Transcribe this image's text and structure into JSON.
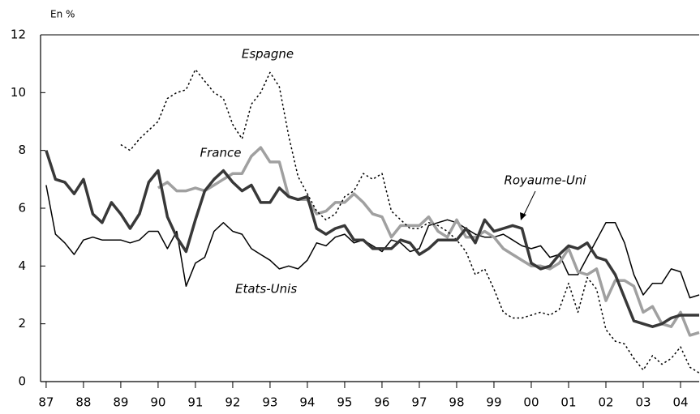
{
  "chart_data": {
    "type": "line",
    "y_axis_label": "En %",
    "x": [
      1987,
      1987.25,
      1987.5,
      1987.75,
      1988,
      1988.25,
      1988.5,
      1988.75,
      1989,
      1989.25,
      1989.5,
      1989.75,
      1990,
      1990.25,
      1990.5,
      1990.75,
      1991,
      1991.25,
      1991.5,
      1991.75,
      1992,
      1992.25,
      1992.5,
      1992.75,
      1993,
      1993.25,
      1993.5,
      1993.75,
      1994,
      1994.25,
      1994.5,
      1994.75,
      1995,
      1995.25,
      1995.5,
      1995.75,
      1996,
      1996.25,
      1996.5,
      1996.75,
      1997,
      1997.25,
      1997.5,
      1997.75,
      1998,
      1998.25,
      1998.5,
      1998.75,
      1999,
      1999.25,
      1999.5,
      1999.75,
      2000,
      2000.25,
      2000.5,
      2000.75,
      2001,
      2001.25,
      2001.5,
      2001.75,
      2002,
      2002.25,
      2002.5,
      2002.75,
      2003,
      2003.25,
      2003.5,
      2003.75,
      2004,
      2004.25,
      2004.5
    ],
    "series": [
      {
        "name": "Etats-Unis",
        "color": "#000000",
        "values": [
          6.8,
          5.1,
          4.8,
          4.4,
          4.9,
          5.0,
          4.9,
          4.9,
          4.9,
          4.8,
          4.9,
          5.2,
          5.2,
          4.6,
          5.2,
          3.3,
          4.1,
          4.3,
          5.2,
          5.5,
          5.2,
          5.1,
          4.6,
          4.4,
          4.2,
          3.9,
          4.0,
          3.9,
          4.2,
          4.8,
          4.7,
          5.0,
          5.1,
          4.8,
          4.9,
          4.7,
          4.5,
          4.9,
          4.8,
          4.5,
          4.6,
          5.4,
          5.5,
          5.6,
          5.5,
          5.3,
          5.1,
          5.0,
          5.0,
          5.1,
          4.9,
          4.7,
          4.6,
          4.7,
          4.3,
          4.4,
          3.7,
          3.7,
          4.3,
          4.9,
          5.5,
          5.5,
          4.8,
          3.7,
          3.0,
          3.4,
          3.4,
          3.9,
          3.8,
          2.9,
          3.0
        ]
      },
      {
        "name": "Royaume-Uni",
        "color": "#383838",
        "values": [
          8.0,
          7.0,
          6.9,
          6.5,
          7.0,
          5.8,
          5.5,
          6.2,
          5.8,
          5.3,
          5.8,
          6.9,
          7.3,
          5.7,
          5.0,
          4.5,
          5.6,
          6.6,
          7.0,
          7.3,
          6.9,
          6.6,
          6.8,
          6.2,
          6.2,
          6.7,
          6.4,
          6.3,
          6.4,
          5.3,
          5.1,
          5.3,
          5.4,
          4.9,
          4.9,
          4.6,
          4.6,
          4.6,
          4.9,
          4.8,
          4.4,
          4.6,
          4.9,
          4.9,
          4.9,
          5.3,
          4.8,
          5.6,
          5.2,
          5.3,
          5.4,
          5.3,
          4.1,
          3.9,
          4.0,
          4.4,
          4.7,
          4.6,
          4.8,
          4.3,
          4.2,
          3.7,
          2.9,
          2.1,
          2.0,
          1.9,
          2.0,
          2.2,
          2.3,
          2.3,
          2.3
        ]
      },
      {
        "name": "France",
        "color": "#a0a0a0",
        "values": [
          null,
          null,
          null,
          null,
          null,
          null,
          null,
          null,
          null,
          null,
          null,
          null,
          6.7,
          6.9,
          6.6,
          6.6,
          6.7,
          6.6,
          6.8,
          7.0,
          7.2,
          7.2,
          7.8,
          8.1,
          7.6,
          7.6,
          6.4,
          6.3,
          6.3,
          5.8,
          5.9,
          6.2,
          6.2,
          6.5,
          6.2,
          5.8,
          5.7,
          5.0,
          5.4,
          5.4,
          5.4,
          5.7,
          5.2,
          5.0,
          5.6,
          5.0,
          5.0,
          5.2,
          5.0,
          4.6,
          4.4,
          4.2,
          4.0,
          4.0,
          3.9,
          4.1,
          4.6,
          3.8,
          3.7,
          3.9,
          2.8,
          3.5,
          3.5,
          3.3,
          2.4,
          2.6,
          2.0,
          1.9,
          2.4,
          1.6,
          1.7
        ]
      },
      {
        "name": "Espagne",
        "color": "#000000",
        "dashed": true,
        "values": [
          null,
          null,
          null,
          null,
          null,
          null,
          null,
          null,
          8.2,
          8.0,
          8.4,
          8.7,
          9.0,
          9.8,
          10.0,
          10.1,
          10.8,
          10.4,
          10.0,
          9.8,
          8.9,
          8.4,
          9.6,
          10.0,
          10.7,
          10.2,
          8.5,
          7.1,
          6.5,
          5.9,
          5.6,
          5.8,
          6.4,
          6.6,
          7.2,
          7.0,
          7.2,
          5.9,
          5.6,
          5.3,
          5.3,
          5.5,
          5.4,
          5.2,
          4.9,
          4.5,
          3.7,
          3.9,
          3.2,
          2.4,
          2.2,
          2.2,
          2.3,
          2.4,
          2.3,
          2.5,
          3.4,
          2.4,
          3.6,
          3.2,
          1.8,
          1.4,
          1.3,
          0.8,
          0.4,
          0.9,
          0.6,
          0.8,
          1.2,
          0.5,
          0.3
        ]
      }
    ],
    "xlim": [
      1986.85,
      2004.5
    ],
    "xticks": [
      {
        "value": 1987,
        "label": "87"
      },
      {
        "value": 1988,
        "label": "88"
      },
      {
        "value": 1989,
        "label": "89"
      },
      {
        "value": 1990,
        "label": "90"
      },
      {
        "value": 1991,
        "label": "91"
      },
      {
        "value": 1992,
        "label": "92"
      },
      {
        "value": 1993,
        "label": "93"
      },
      {
        "value": 1994,
        "label": "94"
      },
      {
        "value": 1995,
        "label": "95"
      },
      {
        "value": 1996,
        "label": "96"
      },
      {
        "value": 1997,
        "label": "97"
      },
      {
        "value": 1998,
        "label": "98"
      },
      {
        "value": 1999,
        "label": "99"
      },
      {
        "value": 2000,
        "label": "00"
      },
      {
        "value": 2001,
        "label": "01"
      },
      {
        "value": 2002,
        "label": "02"
      },
      {
        "value": 2003,
        "label": "03"
      },
      {
        "value": 2004,
        "label": "04"
      }
    ],
    "ylim": [
      0,
      12
    ],
    "yticks": [
      0,
      2,
      4,
      6,
      8,
      10,
      12
    ]
  }
}
